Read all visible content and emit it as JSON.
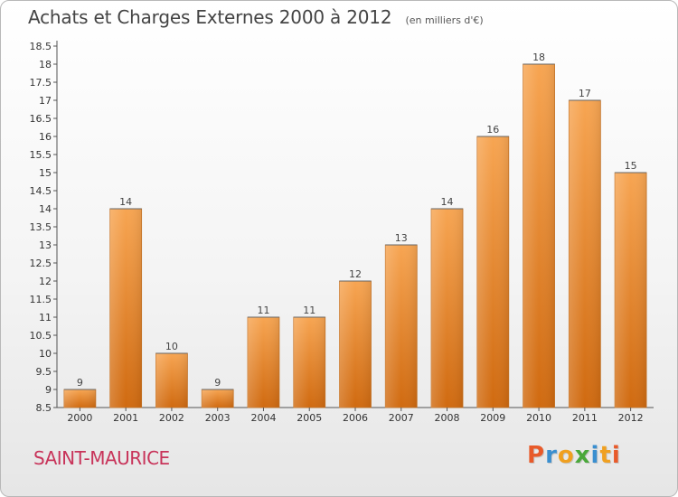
{
  "header": {
    "title": "Achats et Charges Externes 2000 à 2012",
    "subtitle": "(en milliers d'€)"
  },
  "footer": {
    "location": "SAINT-MAURICE",
    "brand": "Proxiti"
  },
  "colors": {
    "bar_top": "#f7a552",
    "bar_bottom": "#d06a10",
    "title_color": "#444444",
    "location_color": "#c8345a",
    "brand_letters": [
      "#e85a2a",
      "#3a8fd0",
      "#f0a020",
      "#4aa83a",
      "#3a8fd0",
      "#f0a020",
      "#e85a2a"
    ]
  },
  "chart_data": {
    "type": "bar",
    "title": "Achats et Charges Externes 2000 à 2012",
    "subtitle": "(en milliers d'€)",
    "xlabel": "",
    "ylabel": "",
    "categories": [
      "2000",
      "2001",
      "2002",
      "2003",
      "2004",
      "2005",
      "2006",
      "2007",
      "2008",
      "2009",
      "2010",
      "2011",
      "2012"
    ],
    "values": [
      9,
      14,
      10,
      9,
      11,
      11,
      12,
      13,
      14,
      16,
      18,
      17,
      15
    ],
    "ylim": [
      8.5,
      18.5
    ],
    "yticks": [
      8.5,
      9,
      9.5,
      10,
      10.5,
      11,
      11.5,
      12,
      12.5,
      13,
      13.5,
      14,
      14.5,
      15,
      15.5,
      16,
      16.5,
      17,
      17.5,
      18,
      18.5
    ],
    "ytick_labels": [
      "8.5",
      "9",
      "9.5",
      "10",
      "10.5",
      "11",
      "11.5",
      "12",
      "12.5",
      "13",
      "13.5",
      "14",
      "14.5",
      "15",
      "15.5",
      "16",
      "16.5",
      "17",
      "17.5",
      "18",
      "18.5"
    ],
    "grid": false,
    "legend": "none"
  }
}
